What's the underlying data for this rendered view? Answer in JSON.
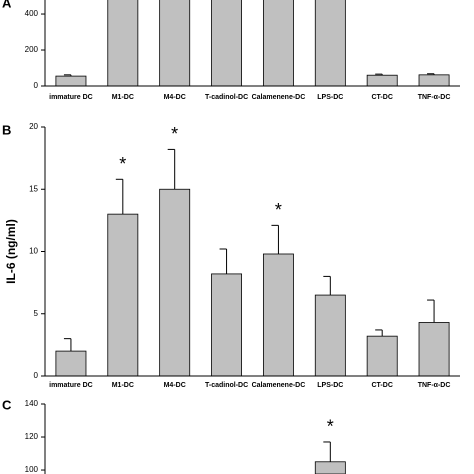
{
  "chart_data": [
    {
      "type": "bar",
      "panel_label": "A",
      "categories": [
        "immature DC",
        "M1-DC",
        "M4-DC",
        "T-cadinol-DC",
        "Calamenene-DC",
        "LPS-DC",
        "CT-DC",
        "TNF-α-DC"
      ],
      "values": [
        55,
        500,
        500,
        500,
        500,
        500,
        60,
        62
      ],
      "errors": [
        7,
        null,
        null,
        null,
        null,
        null,
        6,
        6
      ],
      "color": "#c0c0c0",
      "ylim": [
        0,
        478
      ],
      "yticks": [
        0,
        200,
        400
      ]
    },
    {
      "type": "bar",
      "panel_label": "B",
      "ylabel": "IL-6 (ng/ml)",
      "categories": [
        "immature DC",
        "M1-DC",
        "M4-DC",
        "T-cadinol-DC",
        "Calamenene-DC",
        "LPS-DC",
        "CT-DC",
        "TNF-α-DC"
      ],
      "values": [
        2.0,
        13.0,
        15.0,
        8.2,
        9.8,
        6.5,
        3.2,
        4.3
      ],
      "errors": [
        1.0,
        2.8,
        3.2,
        2.0,
        2.3,
        1.5,
        0.5,
        1.8
      ],
      "color": "#c0c0c0",
      "ylim": [
        0,
        20
      ],
      "yticks": [
        0,
        5,
        10,
        15,
        20
      ],
      "annotations": [
        {
          "text": "*",
          "bar": 1
        },
        {
          "text": "*",
          "bar": 2
        },
        {
          "text": "*",
          "bar": 4
        }
      ]
    },
    {
      "type": "bar",
      "panel_label": "C",
      "values": [
        null,
        null,
        null,
        null,
        null,
        105,
        null,
        null
      ],
      "errors": [
        null,
        null,
        null,
        null,
        null,
        12,
        null,
        null
      ],
      "color": "#c0c0c0",
      "ylim": [
        97.6,
        140
      ],
      "yticks": [
        100,
        120,
        140
      ],
      "annotations": [
        {
          "text": "*",
          "bar": 5
        }
      ]
    }
  ]
}
